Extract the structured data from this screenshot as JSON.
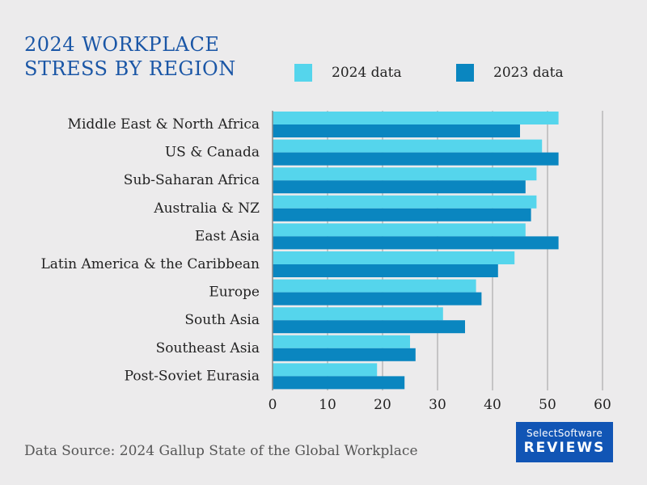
{
  "title_lines": [
    "2024 WORKPLACE",
    "STRESS BY REGION"
  ],
  "source": "Data Source: 2024 Gallup State of the Global Workplace",
  "logo": {
    "line1": "SelectSoftware",
    "line2": "REVIEWS"
  },
  "colors": {
    "series_2024": "#55d5ec",
    "series_2023": "#0a86c0",
    "title": "#1a56a6",
    "logo_bg": "#1155b5",
    "grid": "#b8b8b8"
  },
  "chart_data": {
    "type": "bar",
    "orientation": "horizontal",
    "categories": [
      "Middle East & North Africa",
      "US & Canada",
      "Sub-Saharan Africa",
      "Australia & NZ",
      "East Asia",
      "Latin America & the Caribbean",
      "Europe",
      "South Asia",
      "Southeast Asia",
      "Post-Soviet Eurasia"
    ],
    "series": [
      {
        "name": "2024 data",
        "values": [
          52,
          49,
          48,
          48,
          46,
          44,
          37,
          31,
          25,
          19
        ]
      },
      {
        "name": "2023 data",
        "values": [
          45,
          52,
          46,
          47,
          52,
          41,
          38,
          35,
          26,
          24
        ]
      }
    ],
    "title": "2024 WORKPLACE STRESS BY REGION",
    "xlim": [
      0,
      60
    ],
    "xticks": [
      0,
      10,
      20,
      30,
      40,
      50,
      60
    ],
    "grid": true,
    "legend_position": "top-right"
  }
}
